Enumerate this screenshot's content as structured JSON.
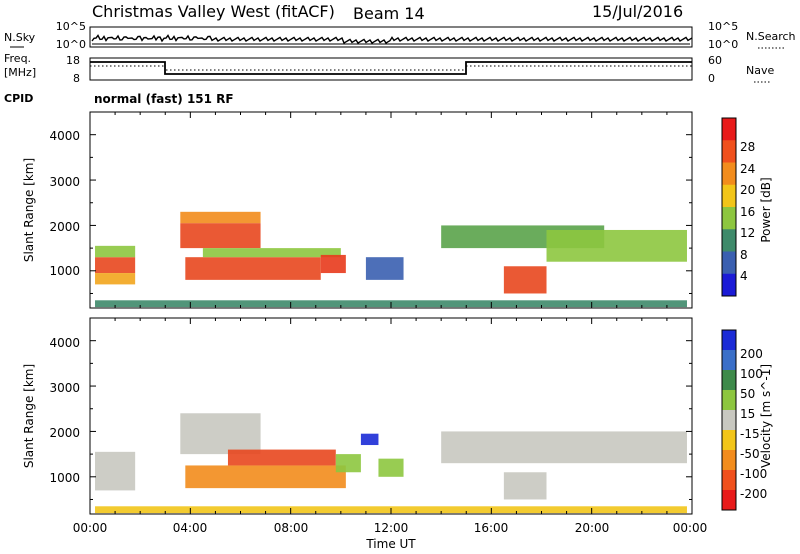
{
  "header": {
    "station": "Christmas Valley West (fitACF)",
    "beam": "Beam 14",
    "date": "15/Jul/2016"
  },
  "status_panel": {
    "nsky_label": "N.Sky",
    "nsky_ticks": [
      "10^5",
      "10^0"
    ],
    "nsearch_label": "N.Search",
    "nsearch_ticks": [
      "10^5",
      "10^0"
    ],
    "freq_label_1": "Freq.",
    "freq_label_2": "[MHz]",
    "freq_ticks": [
      "18",
      "8"
    ],
    "nave_label": "Nave",
    "nave_ticks": [
      "60",
      "0"
    ],
    "cpid_label": "CPID",
    "cpid_value": "normal (fast) 151 RF"
  },
  "chart_data": [
    {
      "type": "heatmap",
      "name": "power",
      "ylabel": "Slant Range [km]",
      "yticks": [
        "1000",
        "2000",
        "3000",
        "4000"
      ],
      "colorbar_label": "Power [dB]",
      "colorbar_ticks": [
        "4",
        "8",
        "12",
        "16",
        "20",
        "24",
        "28"
      ],
      "colorbar_colors": [
        "#1b1bd6",
        "#3a5fb0",
        "#3e8a6a",
        "#8dc63f",
        "#f2c519",
        "#f28c1c",
        "#f0501c",
        "#e81a1a"
      ],
      "patches": [
        {
          "t0": 0.2,
          "t1": 1.8,
          "r0": 950,
          "r1": 1300,
          "color": "#e8471e"
        },
        {
          "t0": 0.2,
          "t1": 1.8,
          "r0": 700,
          "r1": 950,
          "color": "#f2a51d"
        },
        {
          "t0": 0.2,
          "t1": 1.8,
          "r0": 1300,
          "r1": 1550,
          "color": "#8dc63f"
        },
        {
          "t0": 3.6,
          "t1": 6.8,
          "r0": 1500,
          "r1": 2050,
          "color": "#e8471e"
        },
        {
          "t0": 3.6,
          "t1": 6.8,
          "r0": 2050,
          "r1": 2300,
          "color": "#f28c1c"
        },
        {
          "t0": 3.8,
          "t1": 9.2,
          "r0": 800,
          "r1": 1300,
          "color": "#e8471e"
        },
        {
          "t0": 4.5,
          "t1": 10.0,
          "r0": 1300,
          "r1": 1500,
          "color": "#8dc63f"
        },
        {
          "t0": 9.2,
          "t1": 10.2,
          "r0": 950,
          "r1": 1350,
          "color": "#e83a1c"
        },
        {
          "t0": 11.0,
          "t1": 12.5,
          "r0": 800,
          "r1": 1300,
          "color": "#3a5fb0"
        },
        {
          "t0": 14.0,
          "t1": 20.5,
          "r0": 1500,
          "r1": 2000,
          "color": "#5aa34a"
        },
        {
          "t0": 16.5,
          "t1": 18.2,
          "r0": 500,
          "r1": 1100,
          "color": "#e8471e"
        },
        {
          "t0": 18.2,
          "t1": 23.8,
          "r0": 1200,
          "r1": 1900,
          "color": "#8dc63f"
        },
        {
          "t0": 0.2,
          "t1": 23.8,
          "r0": 200,
          "r1": 350,
          "color": "#3e8a6a"
        }
      ]
    },
    {
      "type": "heatmap",
      "name": "velocity",
      "ylabel": "Slant Range [km]",
      "yticks": [
        "1000",
        "2000",
        "3000",
        "4000"
      ],
      "xticks": [
        "00:00",
        "04:00",
        "08:00",
        "12:00",
        "16:00",
        "20:00",
        "00:00"
      ],
      "xlabel": "Time UT",
      "colorbar_label": "Velocity [m s^-1]",
      "colorbar_ticks": [
        "200",
        "100",
        "50",
        "15",
        "-15",
        "-50",
        "-100",
        "-200"
      ],
      "colorbar_colors": [
        "#1b2bd6",
        "#3a6fc8",
        "#3e8a4a",
        "#8dc63f",
        "#c8c8c0",
        "#f2c519",
        "#f28c1c",
        "#f0501c",
        "#e81a1a"
      ],
      "patches": [
        {
          "t0": 0.2,
          "t1": 1.8,
          "r0": 700,
          "r1": 1550,
          "color": "#c8c8c0"
        },
        {
          "t0": 3.6,
          "t1": 6.8,
          "r0": 1500,
          "r1": 2400,
          "color": "#c8c8c0"
        },
        {
          "t0": 3.8,
          "t1": 10.2,
          "r0": 750,
          "r1": 1250,
          "color": "#f28c1c"
        },
        {
          "t0": 5.5,
          "t1": 9.8,
          "r0": 1250,
          "r1": 1600,
          "color": "#e8471e"
        },
        {
          "t0": 9.8,
          "t1": 10.8,
          "r0": 1100,
          "r1": 1500,
          "color": "#8dc63f"
        },
        {
          "t0": 10.8,
          "t1": 11.5,
          "r0": 1700,
          "r1": 1950,
          "color": "#1b2bd6"
        },
        {
          "t0": 11.5,
          "t1": 12.5,
          "r0": 1000,
          "r1": 1400,
          "color": "#8dc63f"
        },
        {
          "t0": 14.0,
          "t1": 23.8,
          "r0": 1300,
          "r1": 2000,
          "color": "#c8c8c0"
        },
        {
          "t0": 16.5,
          "t1": 18.2,
          "r0": 500,
          "r1": 1100,
          "color": "#c8c8c0"
        },
        {
          "t0": 0.2,
          "t1": 23.8,
          "r0": 200,
          "r1": 350,
          "color": "#f2c519"
        }
      ]
    }
  ]
}
